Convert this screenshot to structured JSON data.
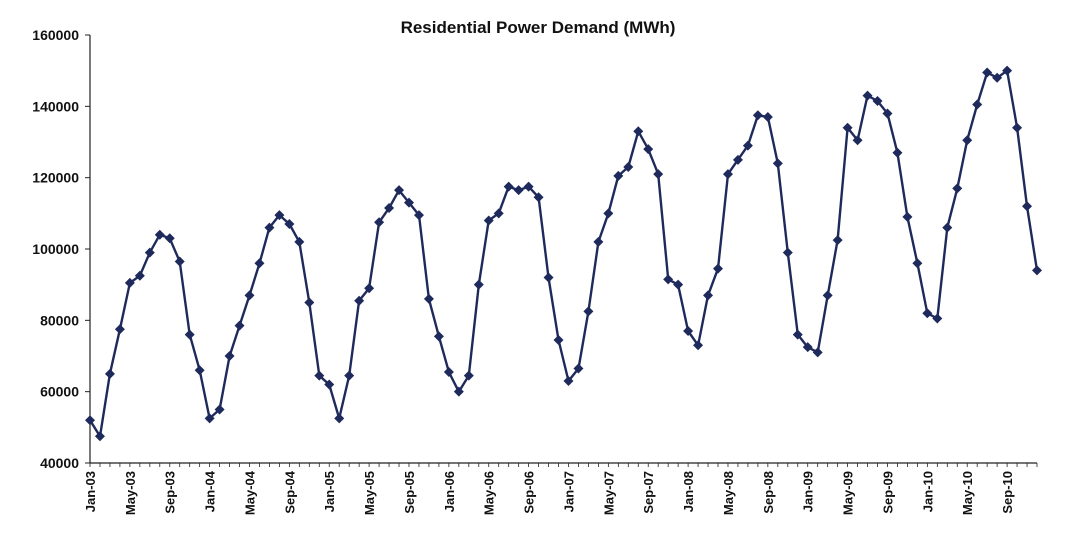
{
  "chart_data": {
    "type": "line",
    "title": "Residential Power Demand (MWh)",
    "xlabel": "",
    "ylabel": "",
    "ylim": [
      40000,
      160000
    ],
    "yticks": [
      40000,
      60000,
      80000,
      100000,
      120000,
      140000,
      160000
    ],
    "ytick_labels": [
      "40000",
      "60000",
      "80000",
      "100000",
      "120000",
      "140000",
      "160000"
    ],
    "grid": false,
    "legend": "none",
    "line_color": "#1f2a5c",
    "marker": "diamond",
    "x_tick_labels": [
      "Jan-03",
      "May-03",
      "Sep-03",
      "Jan-04",
      "May-04",
      "Sep-04",
      "Jan-05",
      "May-05",
      "Sep-05",
      "Jan-06",
      "May-06",
      "Sep-06",
      "Jan-07",
      "May-07",
      "Sep-07",
      "Jan-08",
      "May-08",
      "Sep-08",
      "Jan-09",
      "May-09",
      "Sep-09",
      "Jan-10",
      "May-10",
      "Sep-10"
    ],
    "x": [
      "Jan-03",
      "Feb-03",
      "Mar-03",
      "Apr-03",
      "May-03",
      "Jun-03",
      "Jul-03",
      "Aug-03",
      "Sep-03",
      "Oct-03",
      "Nov-03",
      "Dec-03",
      "Jan-04",
      "Feb-04",
      "Mar-04",
      "Apr-04",
      "May-04",
      "Jun-04",
      "Jul-04",
      "Aug-04",
      "Sep-04",
      "Oct-04",
      "Nov-04",
      "Dec-04",
      "Jan-05",
      "Feb-05",
      "Mar-05",
      "Apr-05",
      "May-05",
      "Jun-05",
      "Jul-05",
      "Aug-05",
      "Sep-05",
      "Oct-05",
      "Nov-05",
      "Dec-05",
      "Jan-06",
      "Feb-06",
      "Mar-06",
      "Apr-06",
      "May-06",
      "Jun-06",
      "Jul-06",
      "Aug-06",
      "Sep-06",
      "Oct-06",
      "Nov-06",
      "Dec-06",
      "Jan-07",
      "Feb-07",
      "Mar-07",
      "Apr-07",
      "May-07",
      "Jun-07",
      "Jul-07",
      "Aug-07",
      "Sep-07",
      "Oct-07",
      "Nov-07",
      "Dec-07",
      "Jan-08",
      "Feb-08",
      "Mar-08",
      "Apr-08",
      "May-08",
      "Jun-08",
      "Jul-08",
      "Aug-08",
      "Sep-08",
      "Oct-08",
      "Nov-08",
      "Dec-08",
      "Jan-09",
      "Feb-09",
      "Mar-09",
      "Apr-09",
      "May-09",
      "Jun-09",
      "Jul-09",
      "Aug-09",
      "Sep-09",
      "Oct-09",
      "Nov-09",
      "Dec-09",
      "Jan-10",
      "Feb-10",
      "Mar-10",
      "Apr-10",
      "May-10",
      "Jun-10",
      "Jul-10",
      "Aug-10",
      "Sep-10",
      "Oct-10",
      "Nov-10",
      "Dec-10"
    ],
    "values": [
      52000,
      47500,
      65000,
      77500,
      90500,
      92500,
      99000,
      104000,
      103000,
      96500,
      76000,
      66000,
      52500,
      55000,
      70000,
      78500,
      87000,
      96000,
      106000,
      109500,
      107000,
      102000,
      85000,
      64500,
      62000,
      52500,
      64500,
      85500,
      89000,
      107500,
      111500,
      116500,
      113000,
      109500,
      86000,
      75500,
      65500,
      60000,
      64500,
      90000,
      108000,
      110000,
      117500,
      116500,
      117500,
      114500,
      92000,
      74500,
      63000,
      66500,
      82500,
      102000,
      110000,
      120500,
      123000,
      133000,
      128000,
      121000,
      91500,
      90000,
      77000,
      73000,
      87000,
      94500,
      121000,
      125000,
      129000,
      137500,
      137000,
      124000,
      99000,
      76000,
      72500,
      71000,
      87000,
      102500,
      134000,
      130500,
      143000,
      141500,
      138000,
      127000,
      109000,
      96000,
      82000,
      80500,
      106000,
      117000,
      130500,
      140500,
      149500,
      148000,
      150000,
      134000,
      112000,
      94000
    ]
  }
}
